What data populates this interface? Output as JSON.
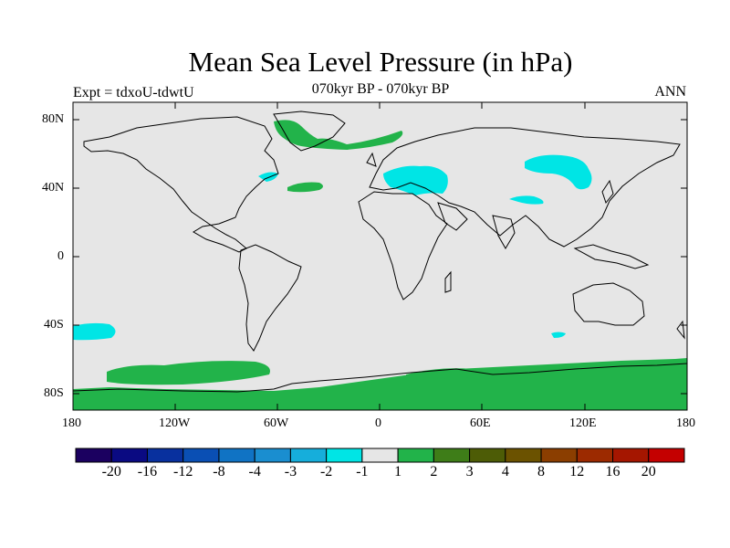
{
  "title": "Mean Sea Level Pressure (in hPa)",
  "subtitle": "070kyr BP - 070kyr BP",
  "left_label": "Expt = tdxoU-tdwtU",
  "right_label": "ANN",
  "lat_ticks": [
    "80N",
    "40N",
    "0",
    "40S",
    "80S"
  ],
  "lon_ticks": [
    "180",
    "120W",
    "60W",
    "0",
    "60E",
    "120E",
    "180"
  ],
  "colorbar": {
    "colors": [
      "#1b0060",
      "#0a0a82",
      "#08309e",
      "#0a4fb4",
      "#1073c4",
      "#1a8ed0",
      "#16aedb",
      "#00e5e5",
      "#e6e6e6",
      "#22b34a",
      "#3e7d18",
      "#4d5c06",
      "#6b5200",
      "#8b3e00",
      "#9c2a00",
      "#a51600",
      "#c40000"
    ],
    "labels": [
      "-20",
      "-16",
      "-12",
      "-8",
      "-4",
      "-3",
      "-2",
      "-1",
      "1",
      "2",
      "3",
      "4",
      "8",
      "12",
      "16",
      "20"
    ]
  },
  "palette": {
    "background": "#e6e6e6",
    "positive": "#22b34a",
    "negative": "#00e5e5"
  }
}
